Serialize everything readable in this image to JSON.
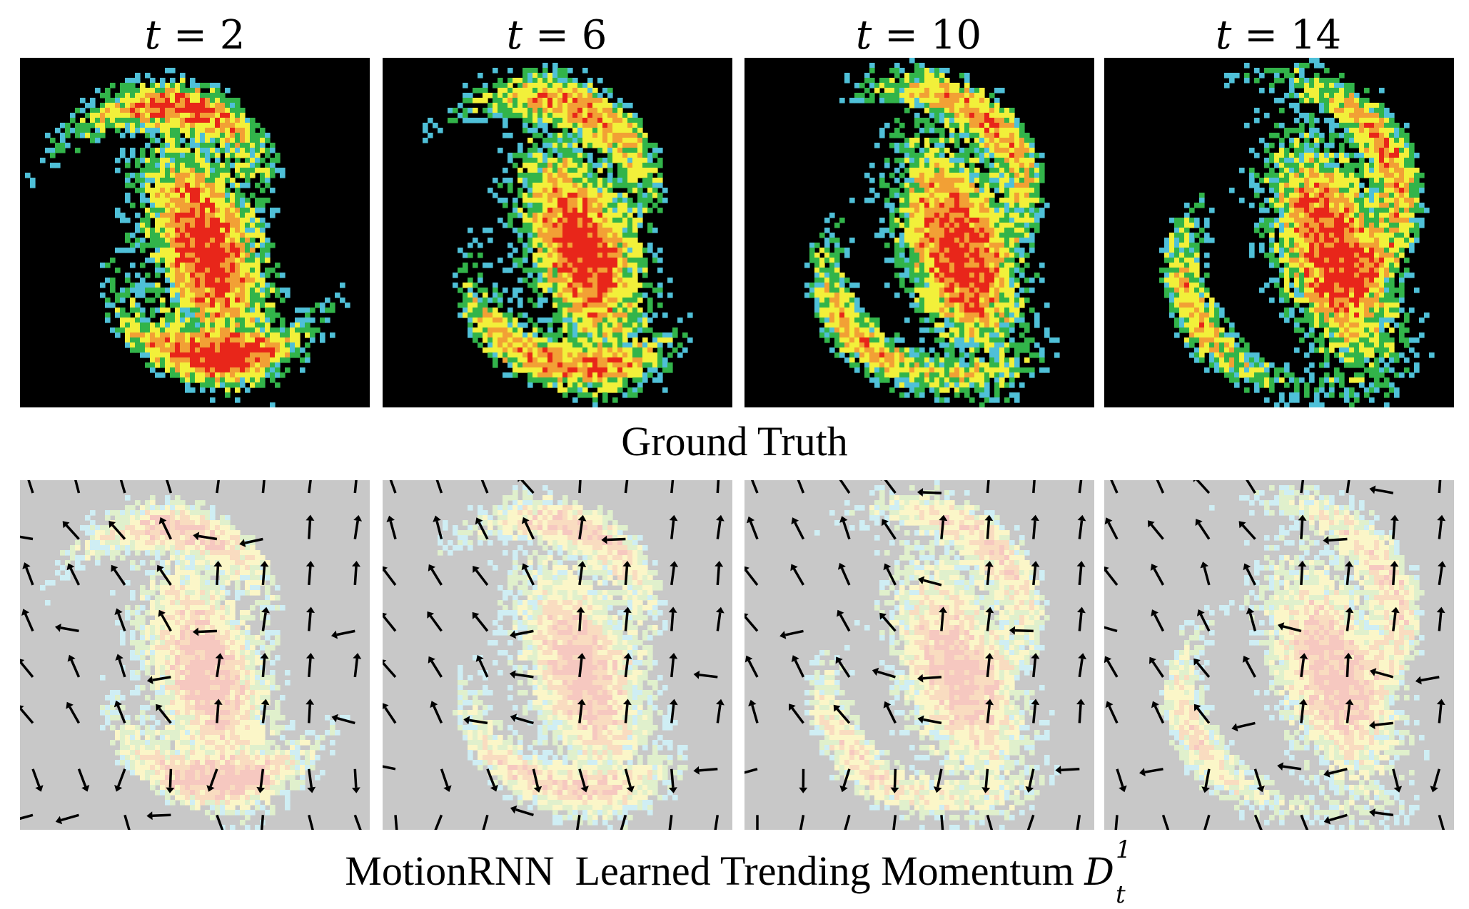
{
  "figure": {
    "columns": [
      {
        "var": "t",
        "eq": "=",
        "value": "2"
      },
      {
        "var": "t",
        "eq": "=",
        "value": "6"
      },
      {
        "var": "t",
        "eq": "=",
        "value": "10"
      },
      {
        "var": "t",
        "eq": "=",
        "value": "14"
      }
    ],
    "row1_caption": "Ground Truth",
    "row2_caption_text": "MotionRNN  Learned Trending Momentum ",
    "row2_caption_symbol": "D",
    "row2_caption_sub": "t",
    "row2_caption_sup": "1",
    "colors": {
      "background_top": "#000000",
      "background_bottom": "#c8c8c8",
      "radar_red": "#e8261a",
      "radar_orange": "#f2a035",
      "radar_yellow": "#f2f03a",
      "radar_green": "#32b44a",
      "radar_cyan": "#4fc0d8",
      "arrow": "#000000"
    }
  }
}
